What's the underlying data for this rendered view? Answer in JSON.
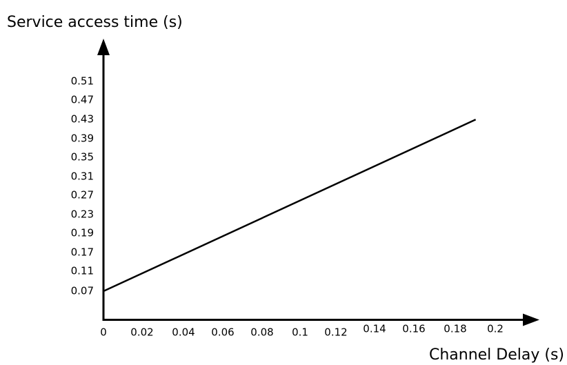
{
  "chart_data": {
    "type": "line",
    "title": "",
    "ylabel": "Service access time (s)",
    "xlabel": "Channel Delay (s)",
    "x_ticks": [
      "0",
      "0.02",
      "0.04",
      "0.06",
      "0.08",
      "0.1",
      "0.12",
      "0.14",
      "0.16",
      "0.18",
      "0.2"
    ],
    "y_ticks": [
      "0.07",
      "0.11",
      "0.17",
      "0.19",
      "0.23",
      "0.27",
      "0.31",
      "0.35",
      "0.39",
      "0.43",
      "0.47",
      "0.51"
    ],
    "xlim": [
      0,
      0.2
    ],
    "ylim": [
      0.03,
      0.51
    ],
    "grid": false,
    "legend": "none",
    "series": [
      {
        "x": [
          0,
          0.19
        ],
        "y": [
          0.07,
          0.43
        ]
      }
    ],
    "colors": {
      "line": "#000000",
      "axis": "#000000"
    }
  }
}
